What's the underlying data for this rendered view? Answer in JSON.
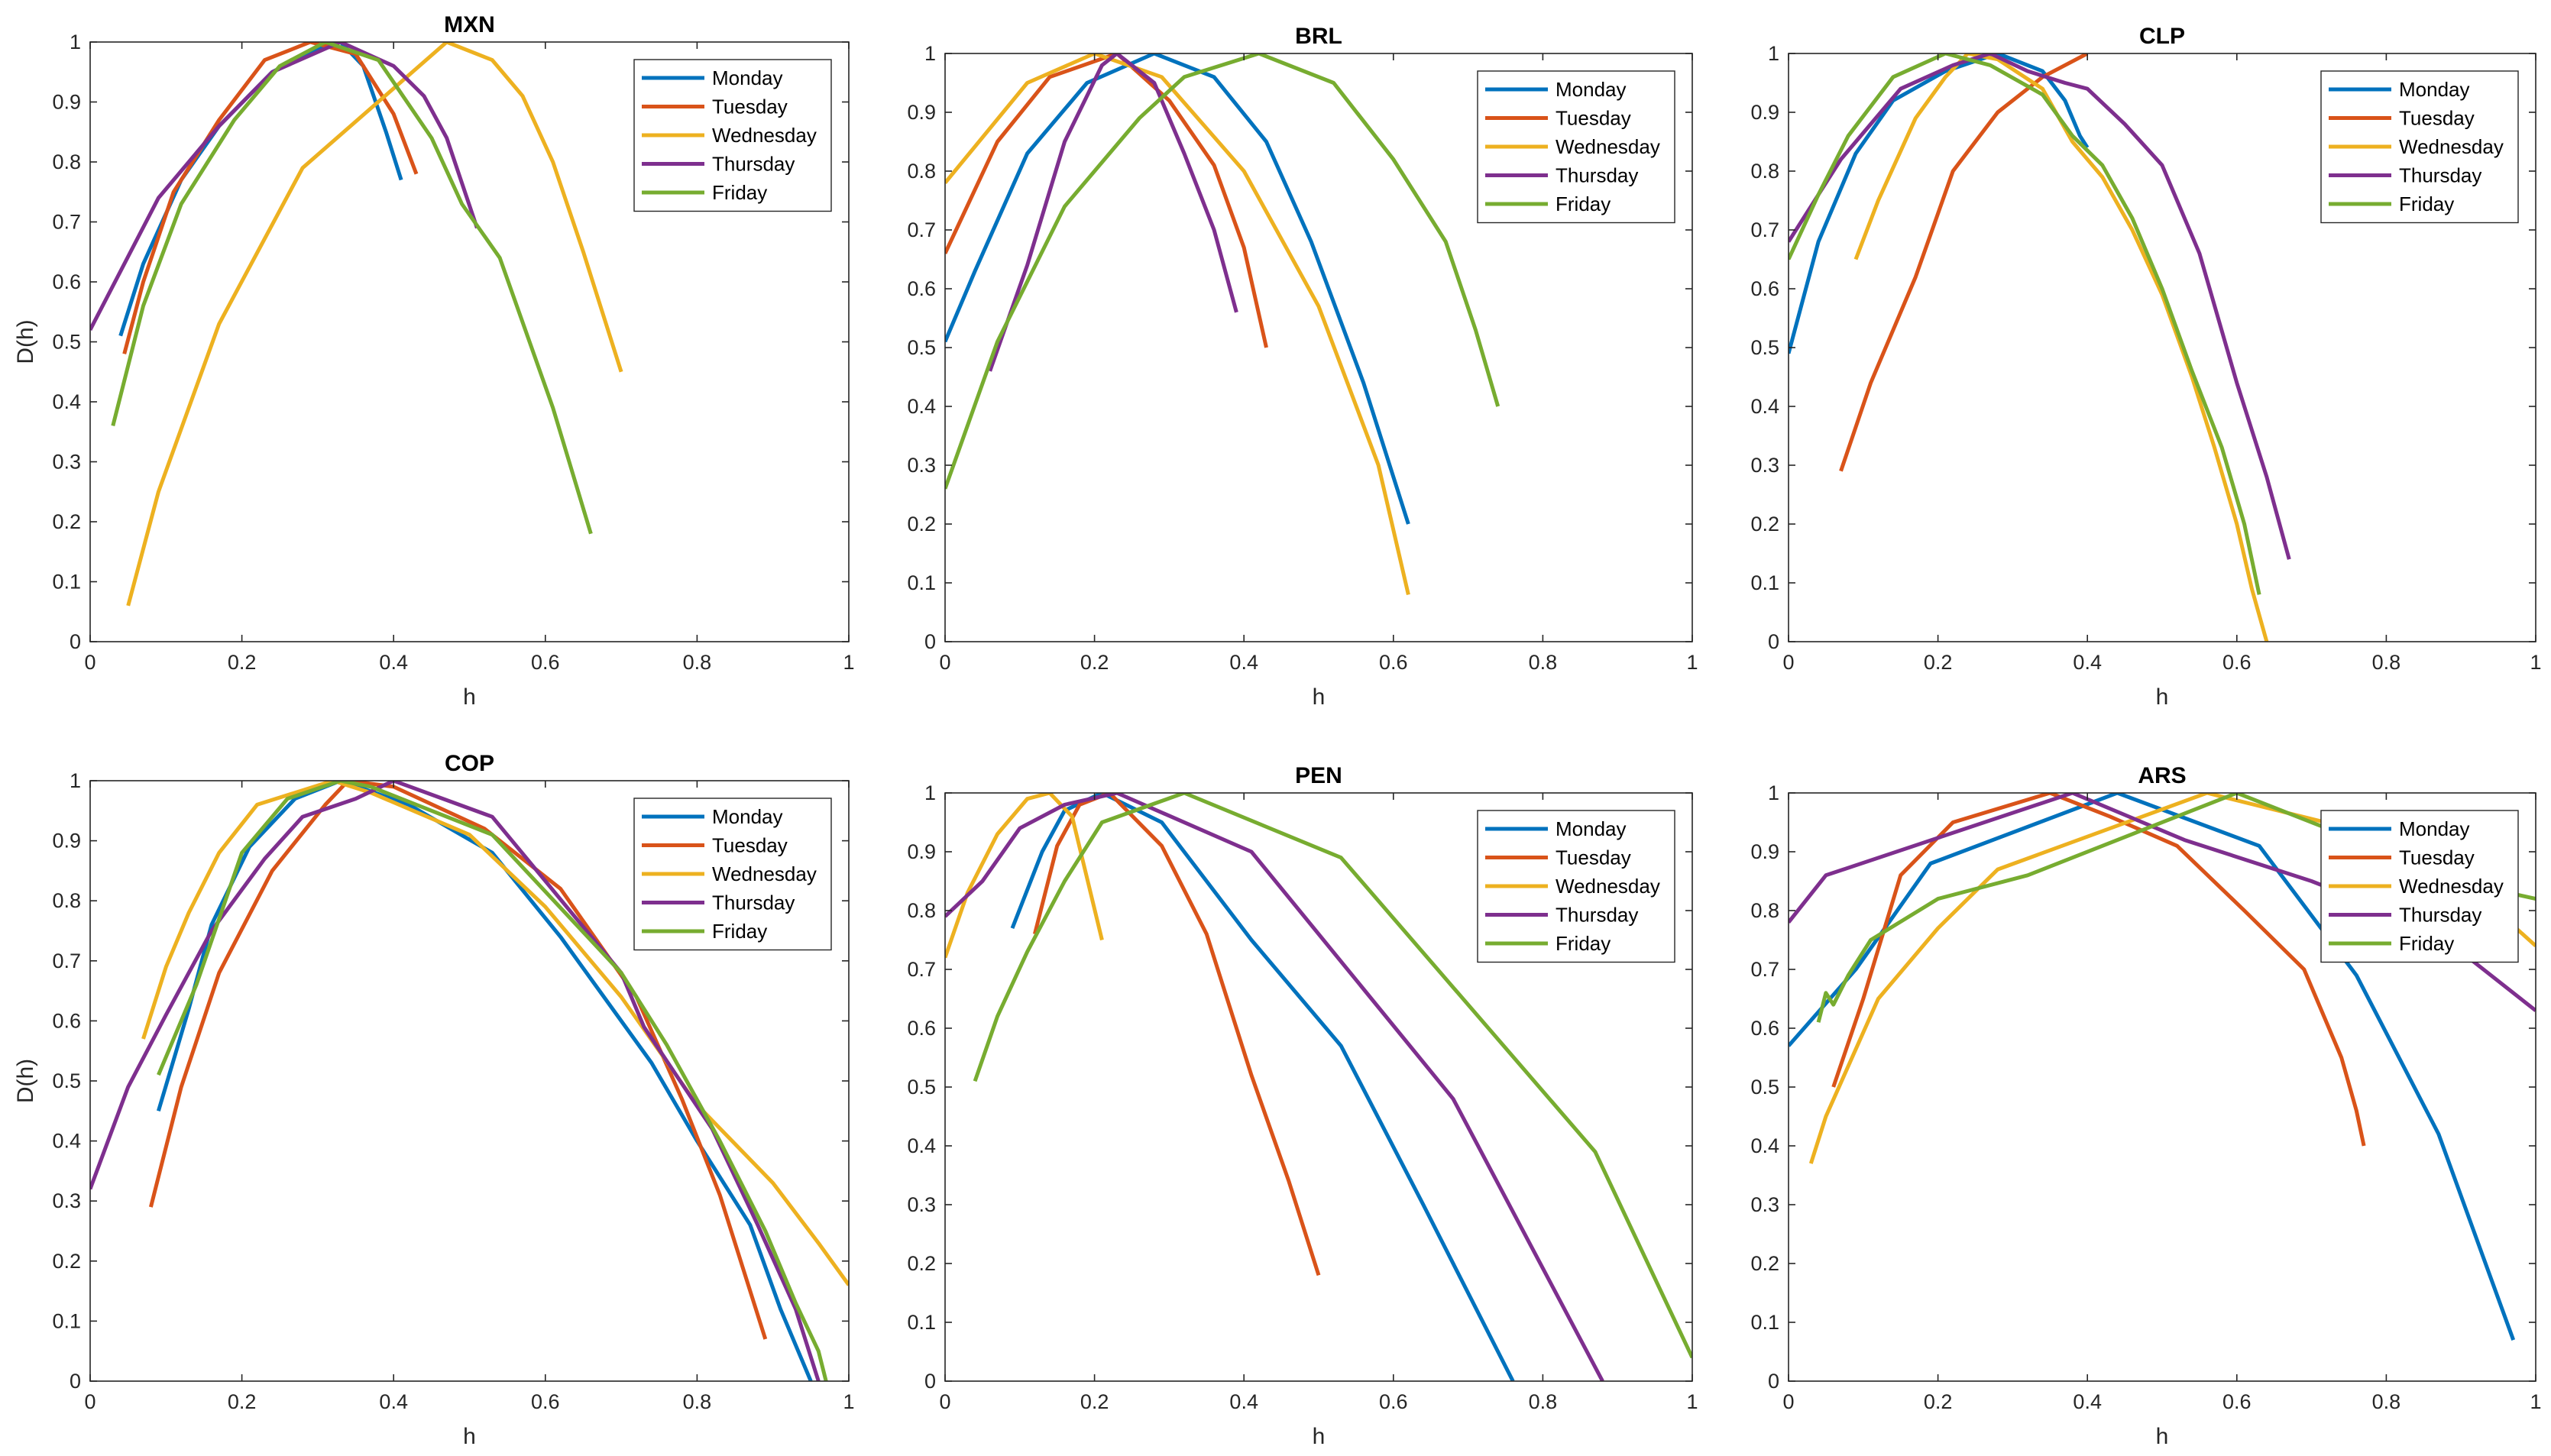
{
  "colors": {
    "Monday": "#0072BD",
    "Tuesday": "#D95319",
    "Wednesday": "#EDB120",
    "Thursday": "#7E2F8E",
    "Friday": "#77AC30"
  },
  "chart_data": [
    {
      "type": "line",
      "title": "MXN",
      "xlabel": "h",
      "ylabel": "D(h)",
      "xlim": [
        0,
        1
      ],
      "ylim": [
        0,
        1
      ],
      "xticks": [
        0,
        0.2,
        0.4,
        0.6,
        0.8,
        1
      ],
      "yticks": [
        0,
        0.1,
        0.2,
        0.3,
        0.4,
        0.5,
        0.6,
        0.7,
        0.8,
        0.9,
        1
      ],
      "legend_position": "top-right",
      "series": [
        {
          "name": "Monday",
          "x": [
            0.04,
            0.07,
            0.12,
            0.17,
            0.24,
            0.3,
            0.33,
            0.36,
            0.39,
            0.41
          ],
          "y": [
            0.51,
            0.63,
            0.77,
            0.86,
            0.95,
            0.99,
            1.0,
            0.96,
            0.85,
            0.77
          ]
        },
        {
          "name": "Tuesday",
          "x": [
            0.045,
            0.07,
            0.11,
            0.17,
            0.23,
            0.29,
            0.35,
            0.4,
            0.43
          ],
          "y": [
            0.48,
            0.6,
            0.75,
            0.87,
            0.97,
            1.0,
            0.98,
            0.88,
            0.78
          ]
        },
        {
          "name": "Wednesday",
          "x": [
            0.05,
            0.09,
            0.17,
            0.28,
            0.47,
            0.53,
            0.57,
            0.61,
            0.65,
            0.7
          ],
          "y": [
            0.06,
            0.25,
            0.53,
            0.79,
            1.0,
            0.97,
            0.91,
            0.8,
            0.65,
            0.45
          ]
        },
        {
          "name": "Thursday",
          "x": [
            0.0,
            0.09,
            0.17,
            0.24,
            0.33,
            0.4,
            0.44,
            0.47,
            0.51
          ],
          "y": [
            0.52,
            0.74,
            0.86,
            0.95,
            1.0,
            0.96,
            0.91,
            0.84,
            0.69
          ]
        },
        {
          "name": "Friday",
          "x": [
            0.03,
            0.07,
            0.12,
            0.19,
            0.25,
            0.31,
            0.38,
            0.45,
            0.49,
            0.54,
            0.61,
            0.66
          ],
          "y": [
            0.36,
            0.56,
            0.73,
            0.87,
            0.96,
            1.0,
            0.97,
            0.84,
            0.73,
            0.64,
            0.39,
            0.18
          ]
        }
      ]
    },
    {
      "type": "line",
      "title": "BRL",
      "xlabel": "h",
      "ylabel": "",
      "xlim": [
        0,
        1
      ],
      "ylim": [
        0,
        1
      ],
      "xticks": [
        0,
        0.2,
        0.4,
        0.6,
        0.8,
        1
      ],
      "yticks": [
        0,
        0.1,
        0.2,
        0.3,
        0.4,
        0.5,
        0.6,
        0.7,
        0.8,
        0.9,
        1
      ],
      "legend_position": "top-right",
      "series": [
        {
          "name": "Monday",
          "x": [
            0.0,
            0.04,
            0.11,
            0.19,
            0.28,
            0.36,
            0.43,
            0.49,
            0.56,
            0.62
          ],
          "y": [
            0.51,
            0.63,
            0.83,
            0.95,
            1.0,
            0.96,
            0.85,
            0.68,
            0.44,
            0.2
          ]
        },
        {
          "name": "Tuesday",
          "x": [
            0.0,
            0.07,
            0.14,
            0.23,
            0.3,
            0.36,
            0.4,
            0.43
          ],
          "y": [
            0.66,
            0.85,
            0.96,
            1.0,
            0.92,
            0.81,
            0.67,
            0.5
          ]
        },
        {
          "name": "Wednesday",
          "x": [
            0.0,
            0.11,
            0.2,
            0.29,
            0.4,
            0.5,
            0.58,
            0.62
          ],
          "y": [
            0.78,
            0.95,
            1.0,
            0.96,
            0.8,
            0.57,
            0.3,
            0.08
          ]
        },
        {
          "name": "Thursday",
          "x": [
            0.06,
            0.11,
            0.16,
            0.21,
            0.23,
            0.28,
            0.32,
            0.36,
            0.39
          ],
          "y": [
            0.46,
            0.64,
            0.85,
            0.98,
            1.0,
            0.95,
            0.83,
            0.7,
            0.56
          ]
        },
        {
          "name": "Friday",
          "x": [
            0.0,
            0.07,
            0.16,
            0.26,
            0.32,
            0.42,
            0.52,
            0.6,
            0.67,
            0.71,
            0.74
          ],
          "y": [
            0.26,
            0.51,
            0.74,
            0.89,
            0.96,
            1.0,
            0.95,
            0.82,
            0.68,
            0.53,
            0.4
          ]
        }
      ]
    },
    {
      "type": "line",
      "title": "CLP",
      "xlabel": "h",
      "ylabel": "",
      "xlim": [
        0,
        1
      ],
      "ylim": [
        0,
        1
      ],
      "xticks": [
        0,
        0.2,
        0.4,
        0.6,
        0.8,
        1
      ],
      "yticks": [
        0,
        0.1,
        0.2,
        0.3,
        0.4,
        0.5,
        0.6,
        0.7,
        0.8,
        0.9,
        1
      ],
      "legend_position": "top-right",
      "series": [
        {
          "name": "Monday",
          "x": [
            0.0,
            0.04,
            0.09,
            0.14,
            0.21,
            0.28,
            0.34,
            0.37,
            0.39,
            0.4
          ],
          "y": [
            0.49,
            0.68,
            0.83,
            0.92,
            0.97,
            1.0,
            0.97,
            0.92,
            0.86,
            0.84
          ]
        },
        {
          "name": "Tuesday",
          "x": [
            0.07,
            0.11,
            0.17,
            0.22,
            0.28,
            0.34,
            0.4
          ],
          "y": [
            0.29,
            0.44,
            0.62,
            0.8,
            0.9,
            0.96,
            1.0
          ]
        },
        {
          "name": "Wednesday",
          "x": [
            0.09,
            0.12,
            0.17,
            0.21,
            0.24,
            0.28,
            0.34,
            0.38,
            0.42,
            0.46,
            0.5,
            0.54,
            0.57,
            0.6,
            0.62,
            0.64
          ],
          "y": [
            0.65,
            0.75,
            0.89,
            0.96,
            1.0,
            0.99,
            0.94,
            0.85,
            0.79,
            0.7,
            0.59,
            0.45,
            0.33,
            0.2,
            0.09,
            0.0
          ]
        },
        {
          "name": "Thursday",
          "x": [
            0.0,
            0.07,
            0.15,
            0.22,
            0.27,
            0.32,
            0.37,
            0.4,
            0.45,
            0.5,
            0.55,
            0.6,
            0.64,
            0.67
          ],
          "y": [
            0.68,
            0.82,
            0.94,
            0.98,
            1.0,
            0.97,
            0.95,
            0.94,
            0.88,
            0.81,
            0.66,
            0.44,
            0.28,
            0.14
          ]
        },
        {
          "name": "Friday",
          "x": [
            0.0,
            0.04,
            0.08,
            0.14,
            0.21,
            0.27,
            0.34,
            0.38,
            0.42,
            0.46,
            0.5,
            0.54,
            0.58,
            0.61,
            0.63
          ],
          "y": [
            0.65,
            0.76,
            0.86,
            0.96,
            1.0,
            0.98,
            0.93,
            0.86,
            0.81,
            0.72,
            0.6,
            0.46,
            0.33,
            0.2,
            0.08
          ]
        }
      ]
    },
    {
      "type": "line",
      "title": "COP",
      "xlabel": "h",
      "ylabel": "D(h)",
      "xlim": [
        0,
        1
      ],
      "ylim": [
        0,
        1
      ],
      "xticks": [
        0,
        0.2,
        0.4,
        0.6,
        0.8,
        1
      ],
      "yticks": [
        0,
        0.1,
        0.2,
        0.3,
        0.4,
        0.5,
        0.6,
        0.7,
        0.8,
        0.9,
        1
      ],
      "legend_position": "top-right",
      "series": [
        {
          "name": "Monday",
          "x": [
            0.09,
            0.13,
            0.16,
            0.21,
            0.27,
            0.33,
            0.42,
            0.53,
            0.62,
            0.74,
            0.8,
            0.87,
            0.91,
            0.95
          ],
          "y": [
            0.45,
            0.62,
            0.76,
            0.89,
            0.97,
            1.0,
            0.96,
            0.88,
            0.74,
            0.53,
            0.4,
            0.26,
            0.12,
            0.0
          ]
        },
        {
          "name": "Tuesday",
          "x": [
            0.08,
            0.12,
            0.17,
            0.24,
            0.31,
            0.34,
            0.4,
            0.52,
            0.62,
            0.72,
            0.78,
            0.83,
            0.86,
            0.89
          ],
          "y": [
            0.29,
            0.49,
            0.68,
            0.85,
            0.96,
            1.0,
            0.99,
            0.92,
            0.82,
            0.64,
            0.47,
            0.31,
            0.19,
            0.07
          ]
        },
        {
          "name": "Wednesday",
          "x": [
            0.07,
            0.1,
            0.13,
            0.17,
            0.22,
            0.32,
            0.37,
            0.5,
            0.6,
            0.7,
            0.8,
            0.9,
            0.96,
            1.0
          ],
          "y": [
            0.57,
            0.69,
            0.78,
            0.88,
            0.96,
            1.0,
            0.98,
            0.91,
            0.79,
            0.64,
            0.46,
            0.33,
            0.23,
            0.16
          ]
        },
        {
          "name": "Thursday",
          "x": [
            0.0,
            0.05,
            0.1,
            0.16,
            0.23,
            0.28,
            0.35,
            0.4,
            0.53,
            0.7,
            0.73,
            0.82,
            0.88,
            0.93,
            0.96
          ],
          "y": [
            0.32,
            0.49,
            0.61,
            0.75,
            0.87,
            0.94,
            0.97,
            1.0,
            0.94,
            0.68,
            0.59,
            0.42,
            0.26,
            0.12,
            0.0
          ]
        },
        {
          "name": "Friday",
          "x": [
            0.09,
            0.14,
            0.2,
            0.26,
            0.33,
            0.37,
            0.53,
            0.7,
            0.76,
            0.83,
            0.89,
            0.93,
            0.96,
            0.97
          ],
          "y": [
            0.51,
            0.66,
            0.88,
            0.97,
            1.0,
            0.99,
            0.91,
            0.68,
            0.56,
            0.4,
            0.25,
            0.13,
            0.05,
            0.0
          ]
        }
      ]
    },
    {
      "type": "line",
      "title": "PEN",
      "xlabel": "h",
      "ylabel": "",
      "xlim": [
        0,
        1
      ],
      "ylim": [
        0,
        1
      ],
      "xticks": [
        0,
        0.2,
        0.4,
        0.6,
        0.8,
        1
      ],
      "yticks": [
        0,
        0.1,
        0.2,
        0.3,
        0.4,
        0.5,
        0.6,
        0.7,
        0.8,
        0.9,
        1
      ],
      "legend_position": "top-right",
      "series": [
        {
          "name": "Monday",
          "x": [
            0.09,
            0.13,
            0.16,
            0.21,
            0.29,
            0.41,
            0.53,
            0.64,
            0.76
          ],
          "y": [
            0.77,
            0.9,
            0.97,
            1.0,
            0.95,
            0.75,
            0.57,
            0.3,
            0.0
          ]
        },
        {
          "name": "Tuesday",
          "x": [
            0.12,
            0.15,
            0.18,
            0.22,
            0.29,
            0.35,
            0.41,
            0.46,
            0.5
          ],
          "y": [
            0.76,
            0.91,
            0.98,
            1.0,
            0.91,
            0.76,
            0.52,
            0.34,
            0.18
          ]
        },
        {
          "name": "Wednesday",
          "x": [
            0.0,
            0.03,
            0.07,
            0.11,
            0.14,
            0.17,
            0.21
          ],
          "y": [
            0.72,
            0.83,
            0.93,
            0.99,
            1.0,
            0.96,
            0.75
          ]
        },
        {
          "name": "Thursday",
          "x": [
            0.0,
            0.05,
            0.1,
            0.16,
            0.23,
            0.41,
            0.68,
            0.88
          ],
          "y": [
            0.79,
            0.85,
            0.94,
            0.98,
            1.0,
            0.9,
            0.48,
            0.0
          ]
        },
        {
          "name": "Friday",
          "x": [
            0.04,
            0.07,
            0.11,
            0.16,
            0.21,
            0.32,
            0.53,
            0.87,
            1.0
          ],
          "y": [
            0.51,
            0.62,
            0.73,
            0.85,
            0.95,
            1.0,
            0.89,
            0.39,
            0.04
          ]
        }
      ]
    },
    {
      "type": "line",
      "title": "ARS",
      "xlabel": "h",
      "ylabel": "",
      "xlim": [
        0,
        1
      ],
      "ylim": [
        0,
        1
      ],
      "xticks": [
        0,
        0.2,
        0.4,
        0.6,
        0.8,
        1
      ],
      "yticks": [
        0,
        0.1,
        0.2,
        0.3,
        0.4,
        0.5,
        0.6,
        0.7,
        0.8,
        0.9,
        1
      ],
      "legend_position": "top-right",
      "series": [
        {
          "name": "Monday",
          "x": [
            0.0,
            0.09,
            0.19,
            0.44,
            0.63,
            0.76,
            0.87,
            0.93,
            0.97
          ],
          "y": [
            0.57,
            0.7,
            0.88,
            1.0,
            0.91,
            0.69,
            0.42,
            0.21,
            0.07
          ]
        },
        {
          "name": "Tuesday",
          "x": [
            0.06,
            0.1,
            0.15,
            0.22,
            0.35,
            0.43,
            0.52,
            0.61,
            0.69,
            0.74,
            0.76,
            0.77
          ],
          "y": [
            0.5,
            0.65,
            0.86,
            0.95,
            1.0,
            0.96,
            0.91,
            0.8,
            0.7,
            0.55,
            0.46,
            0.4
          ]
        },
        {
          "name": "Wednesday",
          "x": [
            0.03,
            0.05,
            0.12,
            0.2,
            0.28,
            0.56,
            0.75,
            0.93,
            1.0
          ],
          "y": [
            0.37,
            0.45,
            0.65,
            0.77,
            0.87,
            1.0,
            0.94,
            0.82,
            0.74
          ]
        },
        {
          "name": "Thursday",
          "x": [
            0.0,
            0.05,
            0.38,
            0.53,
            0.7,
            0.86,
            1.0
          ],
          "y": [
            0.78,
            0.86,
            1.0,
            0.92,
            0.85,
            0.77,
            0.63
          ]
        },
        {
          "name": "Friday",
          "x": [
            0.04,
            0.05,
            0.06,
            0.08,
            0.11,
            0.2,
            0.32,
            0.48,
            0.6,
            0.72,
            0.86,
            1.0
          ],
          "y": [
            0.61,
            0.66,
            0.64,
            0.69,
            0.75,
            0.82,
            0.86,
            0.94,
            1.0,
            0.94,
            0.86,
            0.82
          ]
        }
      ]
    }
  ]
}
